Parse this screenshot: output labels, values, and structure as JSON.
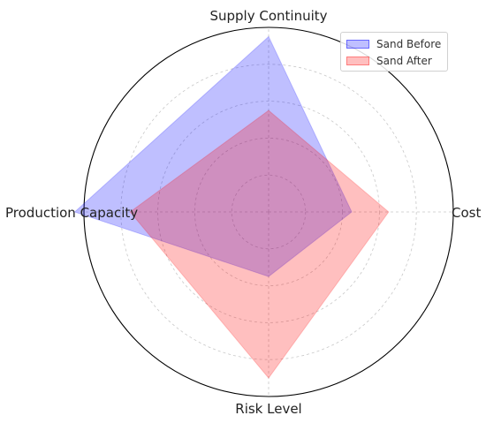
{
  "chart_data": {
    "type": "radar",
    "categories": [
      "Cost",
      "Supply Continuity",
      "Production Capacity",
      "Risk Level"
    ],
    "rmax": 10,
    "grid": true,
    "legend_position": "top-right",
    "series": [
      {
        "name": "Sand Before",
        "values": [
          4.5,
          9.5,
          10.5,
          3.5
        ],
        "color": "#0000ff"
      },
      {
        "name": "Sand After",
        "values": [
          6.5,
          5.5,
          7.5,
          9.0
        ],
        "color": "#ff0000"
      }
    ]
  },
  "legend": {
    "items": [
      {
        "label": "Sand Before"
      },
      {
        "label": "Sand After"
      }
    ]
  }
}
